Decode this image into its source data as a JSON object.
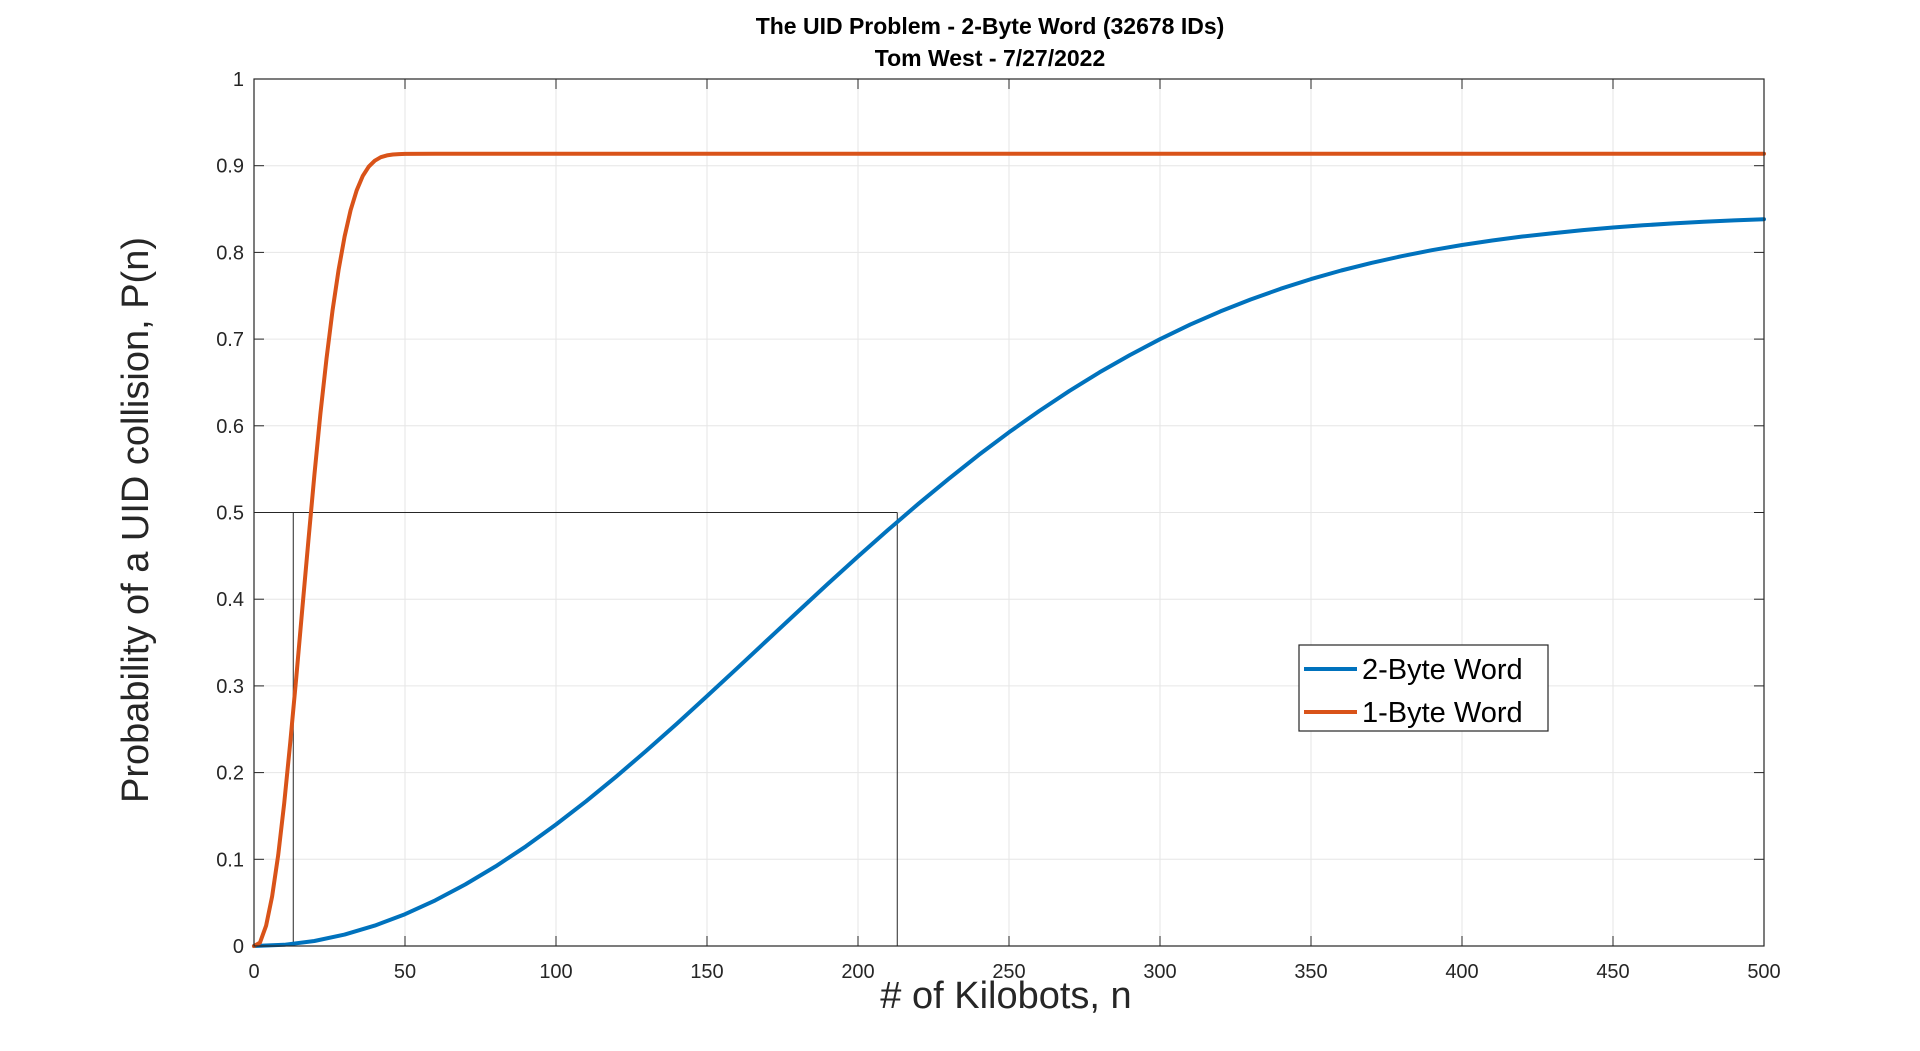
{
  "chart_data": {
    "type": "line",
    "title": "The UID Problem - 2-Byte Word (32678 IDs)",
    "subtitle": "Tom West - 7/27/2022",
    "xlabel": "# of Kilobots, n",
    "ylabel": "Probability of a UID collision, P(n)",
    "xlim": [
      0,
      500
    ],
    "ylim": [
      0,
      1
    ],
    "xticks": [
      0,
      50,
      100,
      150,
      200,
      250,
      300,
      350,
      400,
      450,
      500
    ],
    "yticks": [
      0,
      0.1,
      0.2,
      0.3,
      0.4,
      0.5,
      0.6,
      0.7,
      0.8,
      0.9,
      1
    ],
    "xtick_labels": [
      "0",
      "50",
      "100",
      "150",
      "200",
      "250",
      "300",
      "350",
      "400",
      "450",
      "500"
    ],
    "ytick_labels": [
      "0",
      "0.1",
      "0.2",
      "0.3",
      "0.4",
      "0.5",
      "0.6",
      "0.7",
      "0.8",
      "0.9",
      "1"
    ],
    "grid": true,
    "legend_position": "center-right",
    "series": [
      {
        "name": "2-Byte Word",
        "color": "#0072BD",
        "x": [
          0,
          10,
          20,
          30,
          40,
          50,
          60,
          70,
          80,
          90,
          100,
          110,
          120,
          130,
          140,
          150,
          160,
          170,
          180,
          190,
          200,
          210,
          220,
          230,
          240,
          250,
          260,
          270,
          280,
          290,
          300,
          310,
          320,
          330,
          340,
          350,
          360,
          370,
          380,
          390,
          400,
          410,
          420,
          430,
          440,
          450,
          460,
          470,
          480,
          490,
          500
        ],
        "y": [
          0,
          0.0014,
          0.0058,
          0.0132,
          0.0235,
          0.0367,
          0.0526,
          0.071,
          0.0918,
          0.1149,
          0.1401,
          0.167,
          0.1956,
          0.2255,
          0.2564,
          0.2882,
          0.3204,
          0.3529,
          0.3854,
          0.4176,
          0.4492,
          0.4801,
          0.51,
          0.5388,
          0.5664,
          0.5925,
          0.6171,
          0.6402,
          0.6617,
          0.6816,
          0.6999,
          0.7167,
          0.7319,
          0.7457,
          0.7581,
          0.7692,
          0.7791,
          0.7879,
          0.7956,
          0.8025,
          0.8085,
          0.8137,
          0.8183,
          0.8222,
          0.8257,
          0.8287,
          0.8312,
          0.8334,
          0.8353,
          0.8369,
          0.8383
        ]
      },
      {
        "name": "1-Byte Word",
        "color": "#D95319",
        "x": [
          0,
          2,
          4,
          6,
          8,
          10,
          12,
          14,
          16,
          18,
          20,
          22,
          24,
          26,
          28,
          30,
          32,
          34,
          36,
          38,
          40,
          42,
          44,
          46,
          48,
          50,
          60,
          80,
          100,
          200,
          300,
          400,
          500
        ],
        "y": [
          0,
          0.0039,
          0.0234,
          0.0571,
          0.1048,
          0.1646,
          0.234,
          0.31,
          0.3889,
          0.4676,
          0.5435,
          0.6139,
          0.6774,
          0.7328,
          0.7799,
          0.8183,
          0.8487,
          0.8716,
          0.888,
          0.899,
          0.9058,
          0.9098,
          0.9119,
          0.9129,
          0.9134,
          0.9136,
          0.9137,
          0.9137,
          0.9137,
          0.9137,
          0.9137,
          0.9137,
          0.9137
        ]
      }
    ],
    "reference_lines": [
      {
        "from": [
          0,
          0.5
        ],
        "to": [
          213,
          0.5
        ]
      },
      {
        "from": [
          213,
          0
        ],
        "to": [
          213,
          0.5
        ]
      },
      {
        "from": [
          13,
          0
        ],
        "to": [
          13,
          0.5
        ]
      },
      {
        "from": [
          0,
          1
        ],
        "to": [
          40,
          1
        ]
      }
    ]
  }
}
